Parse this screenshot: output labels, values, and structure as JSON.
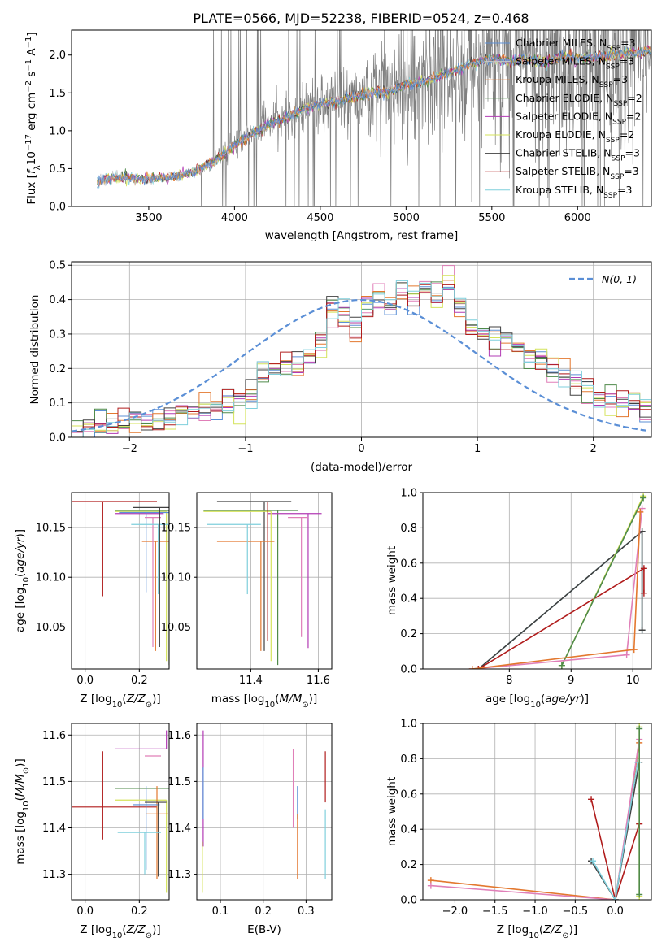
{
  "title": "PLATE=0566, MJD=52238, FIBERID=0524, z=0.468",
  "colors": {
    "chabrier_miles": "#5b8fd6",
    "salpeter_miles": "#c8c8c8",
    "kroupa_miles": "#e3782f",
    "chabrier_elodie": "#4f8a4a",
    "salpeter_elodie": "#b23bb4",
    "kroupa_elodie": "#d4e35a",
    "chabrier_stelib": "#404040",
    "salpeter_stelib": "#b01c1c",
    "kroupa_stelib": "#7fcfdc",
    "data": "#808080",
    "normal": "#5b8fd6",
    "salpeter_miles_weights": "#e07fb8"
  },
  "chart_data": [
    {
      "id": "spectrum",
      "type": "line",
      "xlabel": "wavelength [Angstrom, rest frame]",
      "ylabel": "Flux [f_λ 10^-17 erg cm^-2 s^-1 A^-1]",
      "xlim": [
        3050,
        6430
      ],
      "ylim": [
        0,
        2.33
      ],
      "xticks": [
        3500,
        4000,
        4500,
        5000,
        5500,
        6000
      ],
      "yticks": [
        0.0,
        0.5,
        1.0,
        1.5,
        2.0
      ],
      "data_range": [
        3200,
        6430
      ],
      "continuum_x": [
        3200,
        3300,
        3400,
        3500,
        3600,
        3700,
        3800,
        3900,
        4000,
        4100,
        4200,
        4300,
        4400,
        4500,
        4600,
        4700,
        4800,
        4900,
        5000,
        5100,
        5200,
        5300,
        5400,
        5500,
        5600,
        5700,
        5800,
        5900,
        6000,
        6100,
        6200,
        6300,
        6430
      ],
      "continuum_y": [
        0.33,
        0.38,
        0.37,
        0.36,
        0.38,
        0.42,
        0.5,
        0.62,
        0.8,
        0.95,
        1.08,
        1.18,
        1.28,
        1.35,
        1.38,
        1.45,
        1.5,
        1.52,
        1.6,
        1.65,
        1.72,
        1.8,
        1.9,
        1.95,
        1.92,
        1.95,
        1.9,
        1.98,
        1.95,
        1.98,
        2.0,
        2.02,
        2.05
      ],
      "legend": [
        {
          "label": "Chabrier MILES, N",
          "sub": "SSP",
          "eq": "=3",
          "color_key": "chabrier_miles"
        },
        {
          "label": "Salpeter MILES, N",
          "sub": "SSP",
          "eq": "=3",
          "color_key": "salpeter_miles"
        },
        {
          "label": "Kroupa MILES, N",
          "sub": "SSP",
          "eq": "=3",
          "color_key": "kroupa_miles"
        },
        {
          "label": "Chabrier ELODIE, N",
          "sub": "SSP",
          "eq": "=2",
          "color_key": "chabrier_elodie"
        },
        {
          "label": "Salpeter ELODIE, N",
          "sub": "SSP",
          "eq": "=2",
          "color_key": "salpeter_elodie"
        },
        {
          "label": "Kroupa ELODIE, N",
          "sub": "SSP",
          "eq": "=2",
          "color_key": "kroupa_elodie"
        },
        {
          "label": "Chabrier STELIB, N",
          "sub": "SSP",
          "eq": "=3",
          "color_key": "chabrier_stelib"
        },
        {
          "label": "Salpeter STELIB, N",
          "sub": "SSP",
          "eq": "=3",
          "color_key": "salpeter_stelib"
        },
        {
          "label": "Kroupa STELIB, N",
          "sub": "SSP",
          "eq": "=3",
          "color_key": "kroupa_stelib"
        }
      ]
    },
    {
      "id": "residuals",
      "type": "bar",
      "xlabel": "(data-model)/error",
      "ylabel": "Normed distribution",
      "xlim": [
        -2.5,
        2.5
      ],
      "ylim": [
        0,
        0.51
      ],
      "xticks": [
        -2,
        -1,
        0,
        1,
        2
      ],
      "yticks": [
        0.0,
        0.1,
        0.2,
        0.3,
        0.4,
        0.5
      ],
      "bin_width": 0.1,
      "bin_start": -2.5,
      "base_heights": [
        0.02,
        0.03,
        0.04,
        0.04,
        0.05,
        0.06,
        0.05,
        0.05,
        0.06,
        0.08,
        0.07,
        0.09,
        0.08,
        0.1,
        0.12,
        0.13,
        0.18,
        0.2,
        0.21,
        0.22,
        0.23,
        0.27,
        0.37,
        0.34,
        0.3,
        0.36,
        0.4,
        0.38,
        0.42,
        0.4,
        0.43,
        0.41,
        0.44,
        0.38,
        0.33,
        0.3,
        0.29,
        0.3,
        0.26,
        0.22,
        0.22,
        0.2,
        0.18,
        0.16,
        0.15,
        0.12,
        0.11,
        0.1,
        0.09,
        0.08
      ],
      "gaussian_label": "N(0, 1)",
      "gaussian_mu": 0,
      "gaussian_sigma": 1
    },
    {
      "id": "age_vs_Z",
      "type": "scatter",
      "xlabel": "Z [log10(Z/Z⊙)]",
      "ylabel": "age [log10(age/yr)]",
      "xlim": [
        -0.05,
        0.31
      ],
      "ylim": [
        10.008,
        10.185
      ],
      "xticks": [
        0.0,
        0.2
      ],
      "yticks": [
        10.05,
        10.1,
        10.15
      ],
      "points": [
        {
          "c": "salpeter_stelib",
          "x": 0.065,
          "xerr": [
            0.2,
            0.2
          ],
          "y": 10.176,
          "yerr": [
            0.095,
            0.0
          ]
        },
        {
          "c": "chabrier_elodie",
          "x": 0.31,
          "xerr": [
            0.2,
            0.0
          ],
          "y": 10.167,
          "yerr": [
            0.155,
            0.0
          ]
        },
        {
          "c": "salpeter_elodie",
          "x": 0.29,
          "xerr": [
            0.18,
            0.0
          ],
          "y": 10.164,
          "yerr": [
            0.0,
            0.0
          ]
        },
        {
          "c": "kroupa_elodie",
          "x": 0.3,
          "xerr": [
            0.19,
            0.0
          ],
          "y": 10.166,
          "yerr": [
            0.15,
            0.0
          ]
        },
        {
          "c": "chabrier_miles",
          "x": 0.225,
          "xerr": [
            0.1,
            0.1
          ],
          "y": 10.165,
          "yerr": [
            0.08,
            0.0
          ]
        },
        {
          "c": "kroupa_miles",
          "x": 0.26,
          "xerr": [
            0.05,
            0.05
          ],
          "y": 10.136,
          "yerr": [
            0.11,
            0.0
          ]
        },
        {
          "c": "salpeter_miles_weights",
          "x": 0.25,
          "xerr": [
            0.03,
            0.03
          ],
          "y": 10.16,
          "yerr": [
            0.13,
            0.0
          ]
        },
        {
          "c": "kroupa_stelib",
          "x": 0.27,
          "xerr": [
            0.1,
            0.04
          ],
          "y": 10.153,
          "yerr": [
            0.07,
            0.0
          ]
        },
        {
          "c": "chabrier_stelib",
          "x": 0.275,
          "xerr": [
            0.1,
            0.04
          ],
          "y": 10.17,
          "yerr": [
            0.14,
            0.0
          ]
        }
      ]
    },
    {
      "id": "age_vs_mass",
      "type": "scatter",
      "xlabel": "mass [log10(M/M⊙)]",
      "ylabel": "",
      "xlim": [
        11.24,
        11.64
      ],
      "ylim": [
        10.008,
        10.185
      ],
      "xticks": [
        11.4,
        11.6
      ],
      "yticks": [
        10.05,
        10.1,
        10.15
      ],
      "points": [
        {
          "c": "chabrier_stelib",
          "x": 11.44,
          "xerr": [
            0.14,
            0.08
          ],
          "y": 10.176,
          "yerr": [
            0.15,
            0.0
          ]
        },
        {
          "c": "chabrier_elodie",
          "x": 11.48,
          "xerr": [
            0.22,
            0.06
          ],
          "y": 10.167,
          "yerr": [
            0.155,
            0.0
          ]
        },
        {
          "c": "salpeter_elodie",
          "x": 11.57,
          "xerr": [
            0.12,
            0.04
          ],
          "y": 10.164,
          "yerr": [
            0.135,
            0.0
          ]
        },
        {
          "c": "kroupa_elodie",
          "x": 11.46,
          "xerr": [
            0.2,
            0.0
          ],
          "y": 10.166,
          "yerr": [
            0.15,
            0.0
          ]
        },
        {
          "c": "salpeter_stelib",
          "x": 11.45,
          "xerr": [
            0.0,
            0.0
          ],
          "y": 10.176,
          "yerr": [
            0.14,
            0.0
          ]
        },
        {
          "c": "kroupa_miles",
          "x": 11.43,
          "xerr": [
            0.13,
            0.04
          ],
          "y": 10.136,
          "yerr": [
            0.11,
            0.0
          ]
        },
        {
          "c": "salpeter_miles_weights",
          "x": 11.55,
          "xerr": [
            0.04,
            0.02
          ],
          "y": 10.16,
          "yerr": [
            0.12,
            0.0
          ]
        },
        {
          "c": "kroupa_stelib",
          "x": 11.39,
          "xerr": [
            0.12,
            0.04
          ],
          "y": 10.153,
          "yerr": [
            0.07,
            0.0
          ]
        }
      ]
    },
    {
      "id": "weight_vs_age",
      "type": "line",
      "xlabel": "age  [log10(age/yr)]",
      "ylabel": "mass weight",
      "xlim": [
        6.6,
        10.3
      ],
      "ylim": [
        0,
        1.0
      ],
      "xticks": [
        8,
        9,
        10
      ],
      "yticks": [
        0.0,
        0.2,
        0.4,
        0.6,
        0.8,
        1.0
      ],
      "series": [
        {
          "c": "kroupa_stelib",
          "x": [
            7.5,
            10.15,
            10.15
          ],
          "y": [
            0.0,
            0.78,
            0.22
          ]
        },
        {
          "c": "chabrier_stelib",
          "x": [
            7.5,
            10.15,
            10.15
          ],
          "y": [
            0.0,
            0.78,
            0.22
          ]
        },
        {
          "c": "salpeter_stelib",
          "x": [
            7.5,
            10.18,
            10.18
          ],
          "y": [
            0.0,
            0.57,
            0.43
          ]
        },
        {
          "c": "kroupa_elodie",
          "x": [
            8.85,
            10.17
          ],
          "y": [
            0.02,
            0.98
          ]
        },
        {
          "c": "chabrier_elodie",
          "x": [
            8.85,
            10.17
          ],
          "y": [
            0.02,
            0.97
          ]
        },
        {
          "c": "salpeter_miles_weights",
          "x": [
            7.4,
            9.9,
            10.15
          ],
          "y": [
            0.0,
            0.08,
            0.91
          ]
        },
        {
          "c": "kroupa_miles",
          "x": [
            7.4,
            10.02,
            10.12
          ],
          "y": [
            0.0,
            0.11,
            0.89
          ]
        }
      ]
    },
    {
      "id": "mass_vs_Z",
      "type": "scatter",
      "xlabel": "Z [log10(Z/Z⊙)]",
      "ylabel": "mass [log10(M/M⊙)]",
      "xlim": [
        -0.05,
        0.31
      ],
      "ylim": [
        11.245,
        11.625
      ],
      "xticks": [
        0.0,
        0.2
      ],
      "yticks": [
        11.3,
        11.4,
        11.5,
        11.6
      ],
      "points": [
        {
          "c": "salpeter_stelib",
          "x": 0.065,
          "xerr": [
            0.2,
            0.2
          ],
          "y": 11.445,
          "yerr": [
            0.07,
            0.12
          ]
        },
        {
          "c": "salpeter_elodie",
          "x": 0.3,
          "xerr": [
            0.19,
            0.0
          ],
          "y": 11.57,
          "yerr": [
            0.0,
            0.04
          ]
        },
        {
          "c": "chabrier_elodie",
          "x": 0.31,
          "xerr": [
            0.2,
            0.0
          ],
          "y": 11.485,
          "yerr": [
            0.0,
            0.0
          ]
        },
        {
          "c": "kroupa_elodie",
          "x": 0.3,
          "xerr": [
            0.19,
            0.0
          ],
          "y": 11.46,
          "yerr": [
            0.2,
            0.0
          ]
        },
        {
          "c": "salpeter_miles_weights",
          "x": 0.25,
          "xerr": [
            0.03,
            0.03
          ],
          "y": 11.555,
          "yerr": [
            0.0,
            0.0
          ]
        },
        {
          "c": "kroupa_miles",
          "x": 0.265,
          "xerr": [
            0.04,
            0.04
          ],
          "y": 11.43,
          "yerr": [
            0.14,
            0.06
          ]
        },
        {
          "c": "chabrier_miles",
          "x": 0.225,
          "xerr": [
            0.05,
            0.05
          ],
          "y": 11.45,
          "yerr": [
            0.14,
            0.04
          ]
        },
        {
          "c": "chabrier_stelib",
          "x": 0.27,
          "xerr": [
            0.05,
            0.03
          ],
          "y": 11.455,
          "yerr": [
            0.16,
            0.0
          ]
        },
        {
          "c": "kroupa_stelib",
          "x": 0.22,
          "xerr": [
            0.1,
            0.06
          ],
          "y": 11.39,
          "yerr": [
            0.09,
            0.0
          ]
        }
      ]
    },
    {
      "id": "mass_vs_ebv",
      "type": "scatter",
      "xlabel": "E(B-V)",
      "ylabel": "",
      "xlim": [
        0.045,
        0.36
      ],
      "ylim": [
        11.245,
        11.625
      ],
      "xticks": [
        0.1,
        0.2,
        0.3
      ],
      "yticks": [
        11.3,
        11.4,
        11.5,
        11.6
      ],
      "points": [
        {
          "c": "salpeter_elodie",
          "x": 0.06,
          "xerr": [
            0.0,
            0.0
          ],
          "y": 11.45,
          "yerr": [
            0.09,
            0.16
          ]
        },
        {
          "c": "kroupa_elodie",
          "x": 0.058,
          "xerr": [
            0.0,
            0.0
          ],
          "y": 11.37,
          "yerr": [
            0.11,
            0.0
          ]
        },
        {
          "c": "chabrier_miles",
          "x": 0.06,
          "xerr": [
            0.0,
            0.0
          ],
          "y": 11.45,
          "yerr": [
            0.03,
            0.08
          ]
        },
        {
          "c": "salpeter_miles_weights",
          "x": 0.27,
          "xerr": [
            0.0,
            0.0
          ],
          "y": 11.48,
          "yerr": [
            0.08,
            0.09
          ]
        },
        {
          "c": "chabrier_miles",
          "x": 0.28,
          "xerr": [
            0.0,
            0.0
          ],
          "y": 11.45,
          "yerr": [
            0.03,
            0.04
          ]
        },
        {
          "c": "kroupa_miles",
          "x": 0.28,
          "xerr": [
            0.0,
            0.0
          ],
          "y": 11.43,
          "yerr": [
            0.14,
            0.0
          ]
        },
        {
          "c": "salpeter_stelib",
          "x": 0.345,
          "xerr": [
            0.0,
            0.0
          ],
          "y": 11.455,
          "yerr": [
            0.0,
            0.11
          ]
        },
        {
          "c": "kroupa_stelib",
          "x": 0.345,
          "xerr": [
            0.0,
            0.0
          ],
          "y": 11.4,
          "yerr": [
            0.11,
            0.04
          ]
        }
      ]
    },
    {
      "id": "weight_vs_Z",
      "type": "line",
      "xlabel": "Z [log10(Z/Z⊙)]",
      "ylabel": "mass weight",
      "xlim": [
        -2.4,
        0.45
      ],
      "ylim": [
        0,
        1.0
      ],
      "xticks": [
        -2.0,
        -1.5,
        -1.0,
        -0.5,
        0.0
      ],
      "yticks": [
        0.0,
        0.2,
        0.4,
        0.6,
        0.8,
        1.0
      ],
      "series": [
        {
          "c": "kroupa_miles",
          "x": [
            -2.3,
            0.0,
            0.3
          ],
          "y": [
            0.11,
            0.0,
            0.89
          ]
        },
        {
          "c": "salpeter_miles_weights",
          "x": [
            -2.3,
            0.0,
            0.3
          ],
          "y": [
            0.08,
            0.0,
            0.91
          ]
        },
        {
          "c": "salpeter_stelib",
          "x": [
            -0.3,
            0.0,
            0.3
          ],
          "y": [
            0.57,
            0.0,
            0.43
          ]
        },
        {
          "c": "chabrier_stelib",
          "x": [
            -0.3,
            0.0,
            0.3
          ],
          "y": [
            0.22,
            0.0,
            0.78
          ]
        },
        {
          "c": "kroupa_stelib",
          "x": [
            -0.28,
            0.0,
            0.28
          ],
          "y": [
            0.22,
            0.0,
            0.78
          ]
        },
        {
          "c": "kroupa_elodie",
          "x": [
            0.3,
            0.3
          ],
          "y": [
            0.02,
            0.98
          ]
        },
        {
          "c": "chabrier_elodie",
          "x": [
            0.3,
            0.3
          ],
          "y": [
            0.03,
            0.97
          ]
        }
      ]
    }
  ]
}
